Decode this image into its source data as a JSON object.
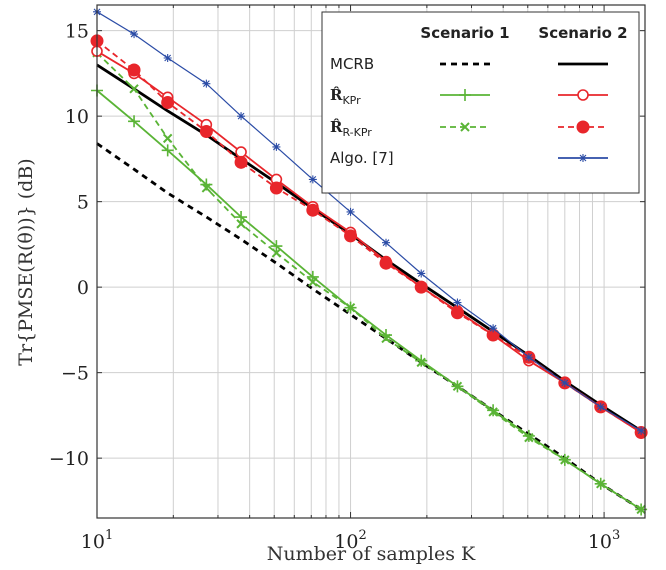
{
  "chart_data": {
    "type": "line",
    "xlabel": "Number of samples K",
    "ylabel": "Tr{PMSE(R(θ))} (dB)",
    "x_scale": "log",
    "xlim": [
      10,
      1450
    ],
    "ylim": [
      -13.5,
      16.5
    ],
    "x_ticks": [
      10,
      100,
      1000
    ],
    "x_tick_labels": [
      {
        "base": "10",
        "exp": "1"
      },
      {
        "base": "10",
        "exp": "2"
      },
      {
        "base": "10",
        "exp": "3"
      }
    ],
    "y_ticks": [
      -10,
      -5,
      0,
      5,
      10,
      15
    ],
    "y_tick_labels": [
      "−10",
      "−5",
      "0",
      "5",
      "10",
      "15"
    ],
    "grid": true,
    "legend": {
      "position": "top-right",
      "col_headers": [
        "Scenario 1",
        "Scenario 2"
      ],
      "rows": [
        {
          "label": "MCRB",
          "sub": ""
        },
        {
          "label": "R̂",
          "sub": "KPr"
        },
        {
          "label": "R̂",
          "sub": "R-KPr"
        },
        {
          "label": "Algo. [7]",
          "sub": ""
        }
      ]
    },
    "x": [
      10,
      14,
      19,
      27,
      37,
      51,
      71,
      100,
      138,
      190,
      264,
      365,
      505,
      700,
      970,
      1400
    ],
    "series": [
      {
        "name": "MCRB",
        "scenario": "Scenario 1",
        "color": "#000000",
        "dash": "6,5",
        "marker": "none",
        "values": [
          8.4,
          6.9,
          5.5,
          4.1,
          2.8,
          1.4,
          -0.1,
          -1.6,
          -3.0,
          -4.4,
          -5.8,
          -7.2,
          -8.6,
          -10.0,
          -11.5,
          -13.0
        ]
      },
      {
        "name": "MCRB",
        "scenario": "Scenario 2",
        "color": "#000000",
        "dash": "",
        "marker": "none",
        "values": [
          13.0,
          11.6,
          10.3,
          8.9,
          7.5,
          6.1,
          4.6,
          3.1,
          1.6,
          0.2,
          -1.2,
          -2.6,
          -4.0,
          -5.5,
          -6.9,
          -8.4
        ]
      },
      {
        "name": "R̂ KPr",
        "scenario": "Scenario 1",
        "color": "#5ab436",
        "dash": "",
        "marker": "plus",
        "values": [
          11.5,
          9.7,
          8.0,
          6.0,
          4.1,
          2.4,
          0.6,
          -1.2,
          -2.8,
          -4.3,
          -5.8,
          -7.2,
          -8.7,
          -10.1,
          -11.5,
          -13.0
        ]
      },
      {
        "name": "R̂ R-KPr",
        "scenario": "Scenario 1",
        "color": "#5ab436",
        "dash": "6,4",
        "marker": "x",
        "values": [
          13.7,
          11.6,
          8.7,
          5.8,
          3.7,
          2.0,
          0.3,
          -1.2,
          -3.0,
          -4.4,
          -5.8,
          -7.3,
          -8.8,
          -10.1,
          -11.5,
          -13.0
        ]
      },
      {
        "name": "R̂ KPr",
        "scenario": "Scenario 2",
        "color": "#e8262b",
        "dash": "",
        "marker": "circle-open",
        "values": [
          13.8,
          12.5,
          11.1,
          9.5,
          7.9,
          6.3,
          4.7,
          3.2,
          1.5,
          0.0,
          -1.4,
          -2.8,
          -4.3,
          -5.6,
          -7.0,
          -8.5
        ]
      },
      {
        "name": "R̂ R-KPr",
        "scenario": "Scenario 2",
        "color": "#e8262b",
        "dash": "6,4",
        "marker": "circle-filled",
        "values": [
          14.4,
          12.7,
          10.8,
          9.1,
          7.3,
          5.8,
          4.5,
          3.0,
          1.4,
          0.0,
          -1.5,
          -2.8,
          -4.1,
          -5.6,
          -7.0,
          -8.5
        ]
      },
      {
        "name": "Algo. [7]",
        "scenario": "Scenario 2",
        "color": "#2b4ca6",
        "dash": "",
        "marker": "asterisk",
        "values": [
          16.1,
          14.8,
          13.4,
          11.9,
          10.0,
          8.2,
          6.3,
          4.4,
          2.6,
          0.8,
          -0.9,
          -2.4,
          -4.1,
          -5.6,
          -7.0,
          -8.4
        ]
      }
    ]
  }
}
